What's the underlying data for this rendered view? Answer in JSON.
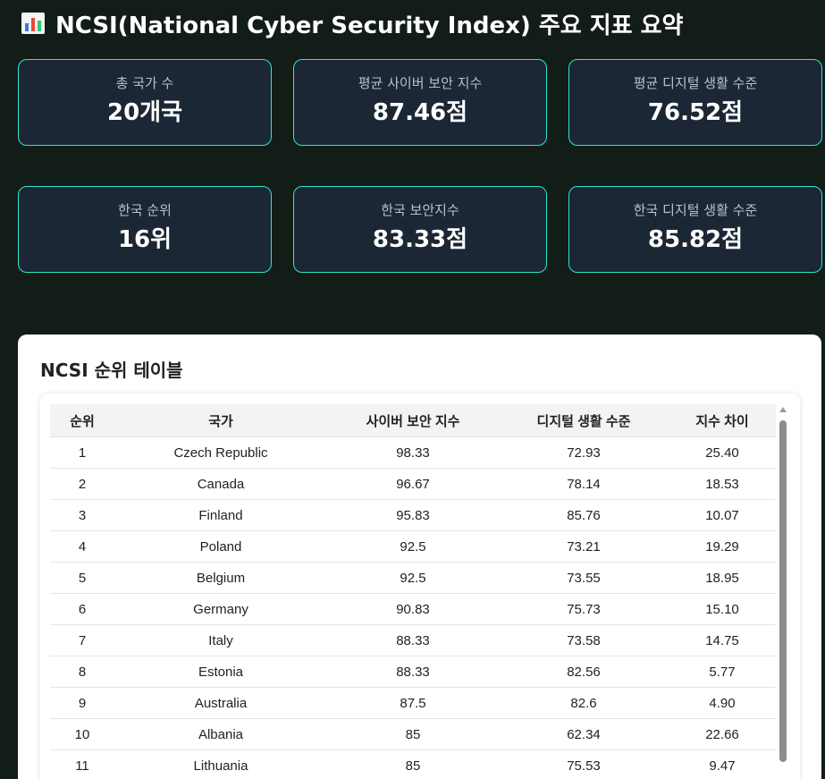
{
  "header": {
    "title": "NCSI(National Cyber Security Index) 주요 지표 요약",
    "icon": "bar-chart-icon"
  },
  "colors": {
    "background": "#121d18",
    "card_background": "#1b2735",
    "card_border": "#2ee6c7",
    "panel_background": "#ffffff"
  },
  "cards": [
    {
      "label": "총 국가 수",
      "value": "20개국"
    },
    {
      "label": "평균 사이버 보안 지수",
      "value": "87.46점"
    },
    {
      "label": "평균 디지털 생활 수준",
      "value": "76.52점"
    },
    {
      "label": "한국 순위",
      "value": "16위"
    },
    {
      "label": "한국 보안지수",
      "value": "83.33점"
    },
    {
      "label": "한국 디지털 생활 수준",
      "value": "85.82점"
    }
  ],
  "table": {
    "title": "NCSI 순위 테이블",
    "headers": [
      "순위",
      "국가",
      "사이버 보안 지수",
      "디지털 생활 수준",
      "지수 차이"
    ],
    "rows": [
      [
        "1",
        "Czech Republic",
        "98.33",
        "72.93",
        "25.40"
      ],
      [
        "2",
        "Canada",
        "96.67",
        "78.14",
        "18.53"
      ],
      [
        "3",
        "Finland",
        "95.83",
        "85.76",
        "10.07"
      ],
      [
        "4",
        "Poland",
        "92.5",
        "73.21",
        "19.29"
      ],
      [
        "5",
        "Belgium",
        "92.5",
        "73.55",
        "18.95"
      ],
      [
        "6",
        "Germany",
        "90.83",
        "75.73",
        "15.10"
      ],
      [
        "7",
        "Italy",
        "88.33",
        "73.58",
        "14.75"
      ],
      [
        "8",
        "Estonia",
        "88.33",
        "82.56",
        "5.77"
      ],
      [
        "9",
        "Australia",
        "87.5",
        "82.6",
        "4.90"
      ],
      [
        "10",
        "Albania",
        "85",
        "62.34",
        "22.66"
      ],
      [
        "11",
        "Lithuania",
        "85",
        "75.53",
        "9.47"
      ]
    ]
  }
}
